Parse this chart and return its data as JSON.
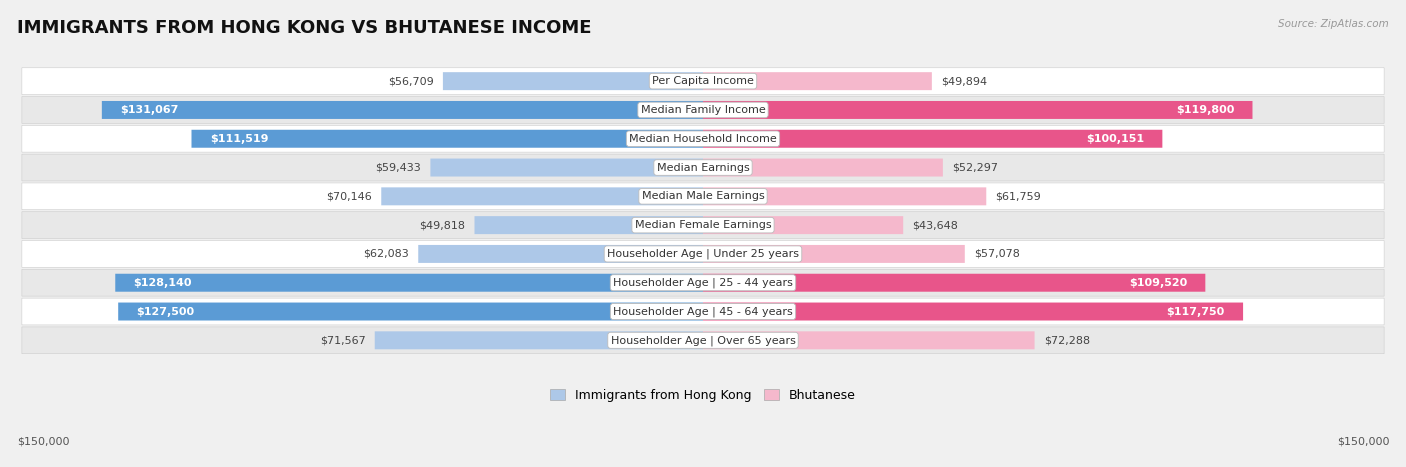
{
  "title": "IMMIGRANTS FROM HONG KONG VS BHUTANESE INCOME",
  "source": "Source: ZipAtlas.com",
  "categories": [
    "Per Capita Income",
    "Median Family Income",
    "Median Household Income",
    "Median Earnings",
    "Median Male Earnings",
    "Median Female Earnings",
    "Householder Age | Under 25 years",
    "Householder Age | 25 - 44 years",
    "Householder Age | 45 - 64 years",
    "Householder Age | Over 65 years"
  ],
  "hk_values": [
    56709,
    131067,
    111519,
    59433,
    70146,
    49818,
    62083,
    128140,
    127500,
    71567
  ],
  "bh_values": [
    49894,
    119800,
    100151,
    52297,
    61759,
    43648,
    57078,
    109520,
    117750,
    72288
  ],
  "hk_labels": [
    "$56,709",
    "$131,067",
    "$111,519",
    "$59,433",
    "$70,146",
    "$49,818",
    "$62,083",
    "$128,140",
    "$127,500",
    "$71,567"
  ],
  "bh_labels": [
    "$49,894",
    "$119,800",
    "$100,151",
    "$52,297",
    "$61,759",
    "$43,648",
    "$57,078",
    "$109,520",
    "$117,750",
    "$72,288"
  ],
  "max_value": 150000,
  "hk_color_light": "#adc8e8",
  "hk_color_dark": "#5b9bd5",
  "bh_color_light": "#f5b8cc",
  "bh_color_dark": "#e8558a",
  "background_color": "#f0f0f0",
  "row_colors": [
    "#ffffff",
    "#e8e8e8"
  ],
  "xlabel_left": "$150,000",
  "xlabel_right": "$150,000",
  "legend_hk": "Immigrants from Hong Kong",
  "legend_bh": "Bhutanese",
  "title_fontsize": 13,
  "label_fontsize": 8,
  "category_fontsize": 8,
  "inside_label_threshold": 80000
}
